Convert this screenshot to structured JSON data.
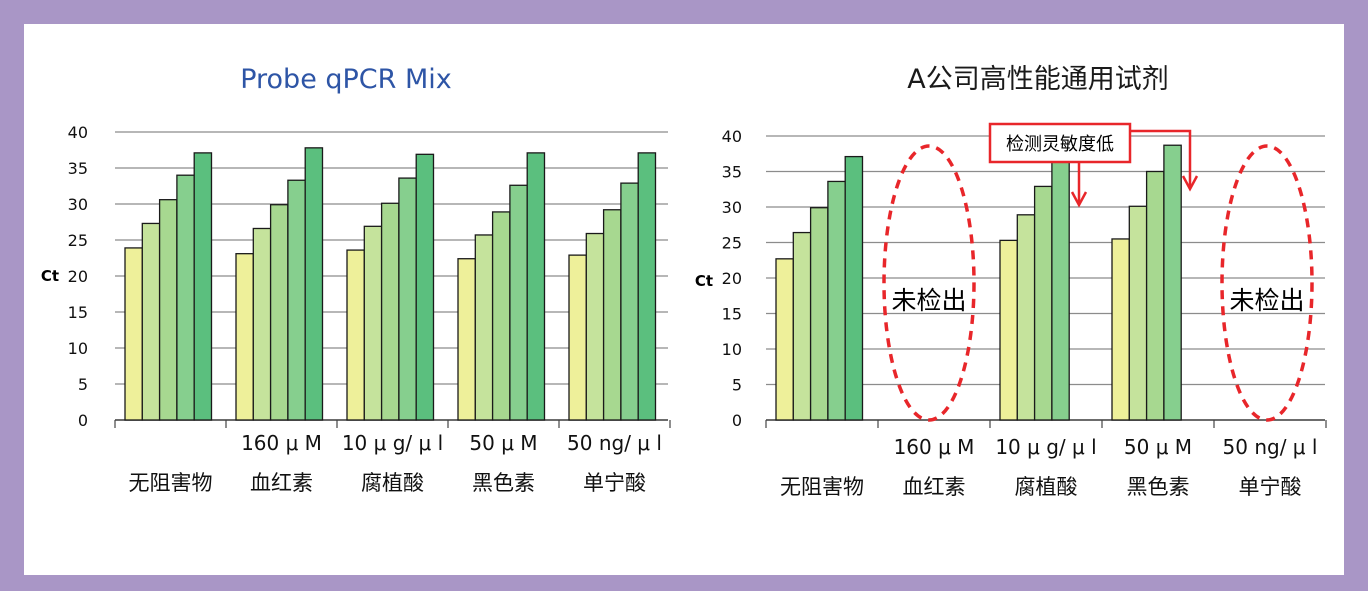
{
  "colors": {
    "border": "#a996c6",
    "background": "#ffffff",
    "title_blue": "#2e55a6",
    "grid": "#8c8c8c",
    "annotation_red": "#e8262a",
    "bar_shades": [
      "#eef09a",
      "#c5e39c",
      "#a7d890",
      "#86cf8e",
      "#5bbf7e"
    ]
  },
  "chart_data": [
    {
      "type": "bar",
      "title": "Probe qPCR Mix",
      "ylabel": "Ct",
      "ylim": [
        0,
        40
      ],
      "yticks": [
        0,
        5,
        10,
        15,
        20,
        25,
        30,
        35,
        40
      ],
      "grid": true,
      "legend": "none",
      "categories": [
        {
          "amount": "",
          "name": "无阻害物"
        },
        {
          "amount": "160 μ M",
          "name": "血红素"
        },
        {
          "amount": "10 μ g/ μ l",
          "name": "腐植酸"
        },
        {
          "amount": "50 μ M",
          "name": "黑色素"
        },
        {
          "amount": "50  ng/ μ l",
          "name": "单宁酸"
        }
      ],
      "groups": [
        [
          23.9,
          27.3,
          30.6,
          34.0,
          37.1
        ],
        [
          23.1,
          26.6,
          29.9,
          33.3,
          37.8
        ],
        [
          23.6,
          26.9,
          30.1,
          33.6,
          36.9
        ],
        [
          22.4,
          25.7,
          28.9,
          32.6,
          37.1
        ],
        [
          22.9,
          25.9,
          29.2,
          32.9,
          37.1
        ]
      ]
    },
    {
      "type": "bar",
      "title": "A公司高性能通用试剂",
      "ylabel": "Ct",
      "ylim": [
        0,
        40
      ],
      "yticks": [
        0,
        5,
        10,
        15,
        20,
        25,
        30,
        35,
        40
      ],
      "grid": true,
      "legend": "none",
      "categories": [
        {
          "amount": "",
          "name": "无阻害物"
        },
        {
          "amount": "160 μ M",
          "name": "血红素"
        },
        {
          "amount": "10 μ g/ μ l",
          "name": "腐植酸"
        },
        {
          "amount": "50 μ M",
          "name": "黑色素"
        },
        {
          "amount": "50  ng/ μ l",
          "name": "单宁酸"
        }
      ],
      "groups": [
        [
          22.7,
          26.4,
          29.9,
          33.6,
          37.1
        ],
        [],
        [
          25.3,
          28.9,
          32.9,
          36.7
        ],
        [
          25.5,
          30.1,
          35.0,
          38.7
        ],
        []
      ],
      "annotations": {
        "not_detected": "未检出",
        "low_sensitivity": "检测灵敏度低"
      }
    }
  ]
}
